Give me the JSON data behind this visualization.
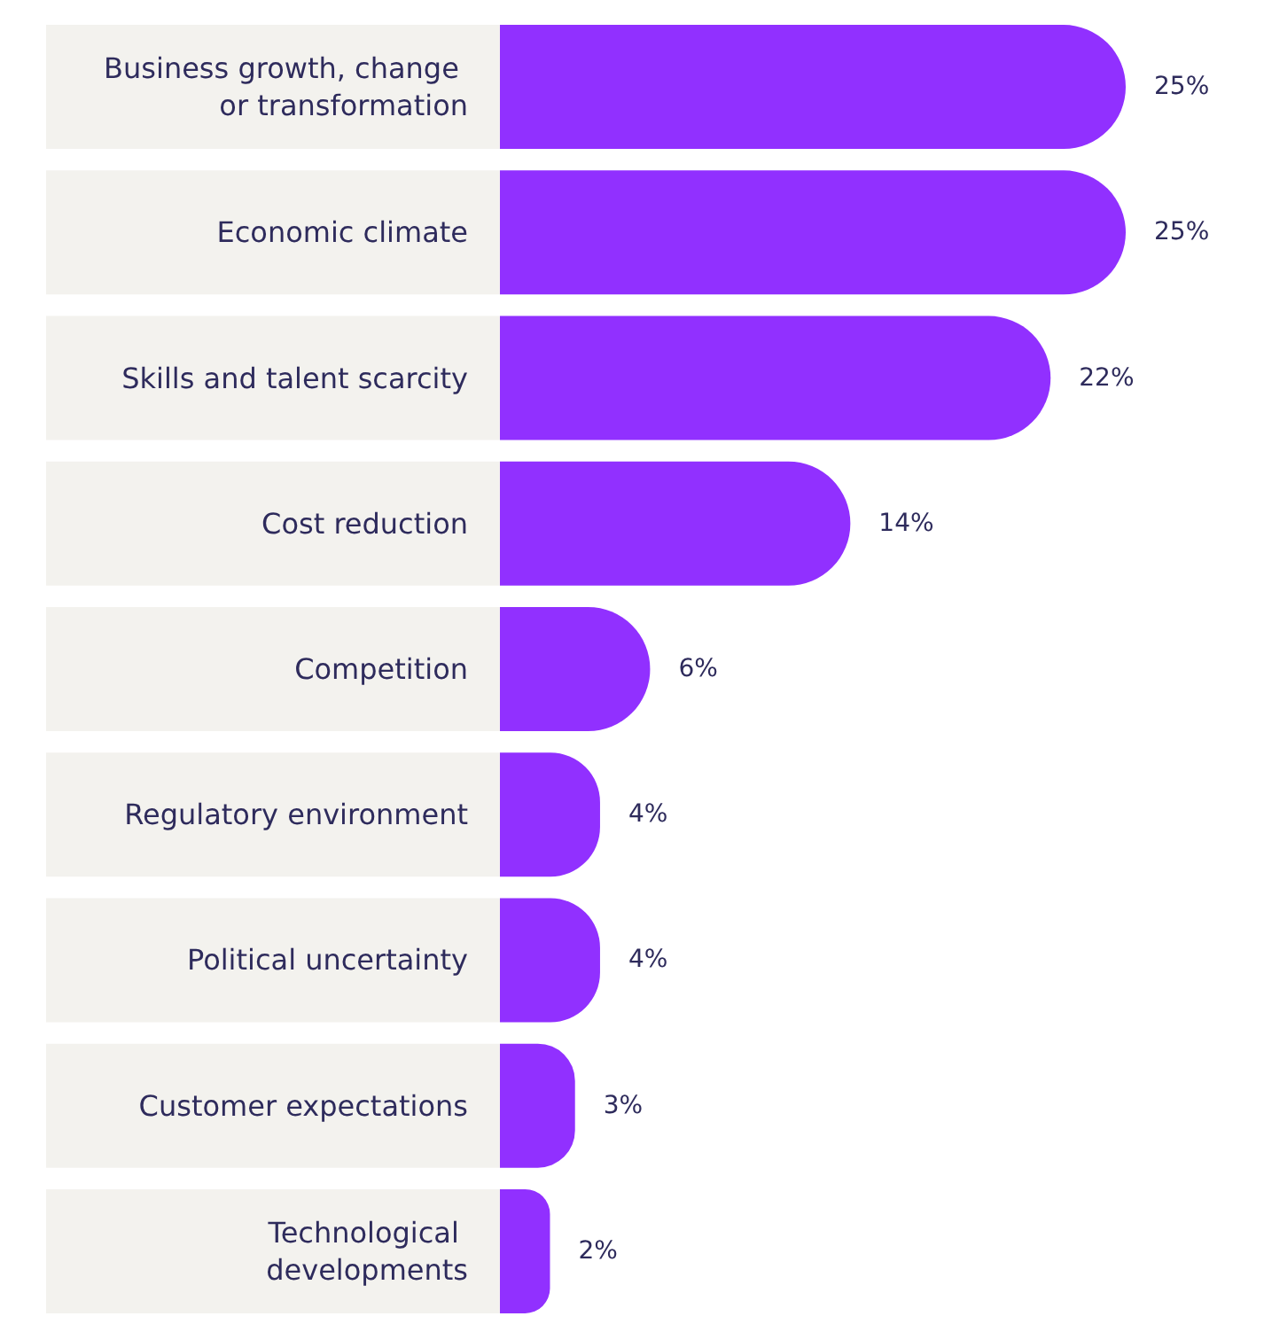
{
  "chart_data": {
    "type": "bar",
    "orientation": "horizontal",
    "categories": [
      "Business growth, change or transformation",
      "Economic climate",
      "Skills and talent scarcity",
      "Cost reduction",
      "Competition",
      "Regulatory environment",
      "Political uncertainty",
      "Customer expectations",
      "Technological developments"
    ],
    "values": [
      25,
      25,
      22,
      14,
      6,
      4,
      4,
      3,
      2
    ],
    "value_labels": [
      "25%",
      "25%",
      "22%",
      "14%",
      "6%",
      "4%",
      "4%",
      "3%",
      "2%"
    ],
    "color": "#9130ff"
  }
}
